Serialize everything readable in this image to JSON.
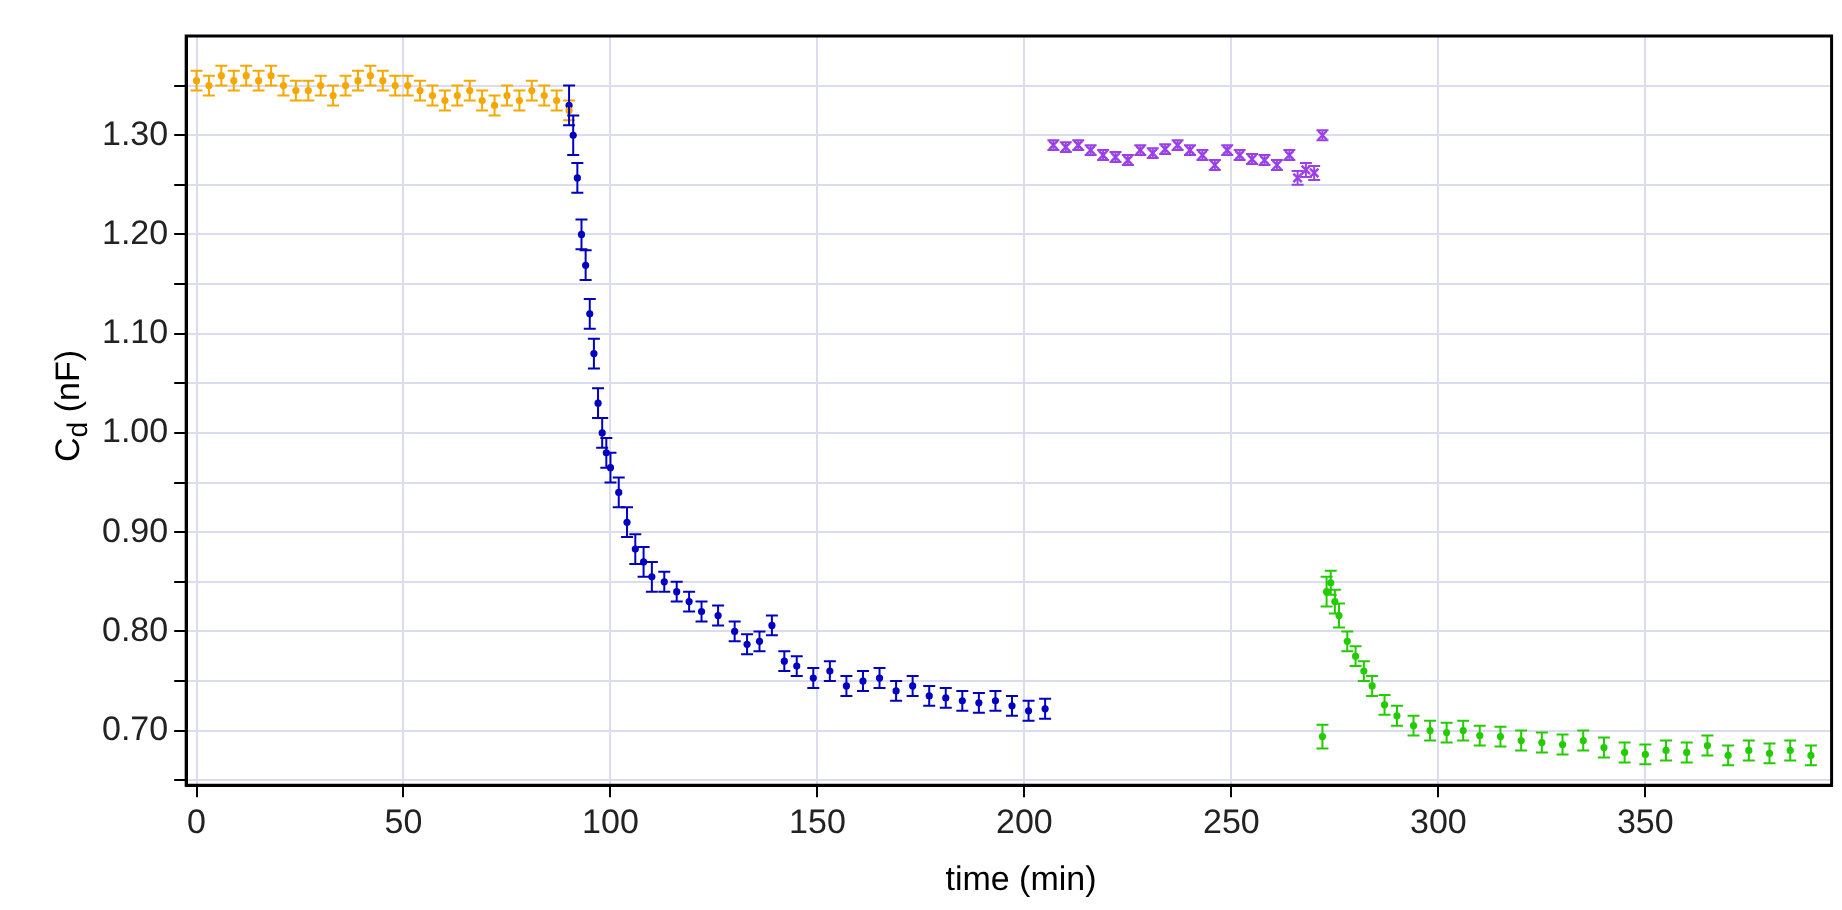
{
  "chart_data": {
    "type": "scatter",
    "xlabel": "time (min)",
    "ylabel": "C$_{d}$ (nF)",
    "xlim": [
      -2.5,
      395
    ],
    "ylim": [
      0.645,
      1.4
    ],
    "xticks": [
      0,
      50,
      100,
      150,
      200,
      250,
      300,
      350
    ],
    "yticks": [
      {
        "value": 0.65,
        "label": null
      },
      {
        "value": 0.7,
        "label": "0.70"
      },
      {
        "value": 0.75,
        "label": null
      },
      {
        "value": 0.8,
        "label": "0.80"
      },
      {
        "value": 0.85,
        "label": null
      },
      {
        "value": 0.9,
        "label": "0.90"
      },
      {
        "value": 0.95,
        "label": null
      },
      {
        "value": 1.0,
        "label": "1.00"
      },
      {
        "value": 1.05,
        "label": null
      },
      {
        "value": 1.1,
        "label": "1.10"
      },
      {
        "value": 1.15,
        "label": null
      },
      {
        "value": 1.2,
        "label": "1.20"
      },
      {
        "value": 1.25,
        "label": null
      },
      {
        "value": 1.3,
        "label": "1.30"
      },
      {
        "value": 1.35,
        "label": null
      }
    ],
    "grid": true,
    "legend": false,
    "marker": "circle",
    "series": [
      {
        "color": "#f5a800",
        "x": [
          0,
          3,
          6,
          9,
          12,
          15,
          18,
          21,
          24,
          27,
          30,
          33,
          36,
          39,
          42,
          45,
          48,
          51,
          54,
          57,
          60,
          63,
          66,
          69,
          72,
          75,
          78,
          81,
          84,
          87,
          90
        ],
        "values": [
          1.355,
          1.35,
          1.36,
          1.355,
          1.36,
          1.355,
          1.36,
          1.35,
          1.345,
          1.345,
          1.35,
          1.34,
          1.35,
          1.355,
          1.36,
          1.355,
          1.35,
          1.35,
          1.345,
          1.34,
          1.335,
          1.34,
          1.345,
          1.335,
          1.33,
          1.34,
          1.335,
          1.345,
          1.34,
          1.335,
          1.325
        ],
        "errors": [
          0.01,
          0.01,
          0.01,
          0.01,
          0.01,
          0.01,
          0.01,
          0.01,
          0.01,
          0.01,
          0.01,
          0.01,
          0.01,
          0.01,
          0.01,
          0.01,
          0.01,
          0.01,
          0.01,
          0.01,
          0.01,
          0.01,
          0.01,
          0.01,
          0.01,
          0.01,
          0.01,
          0.01,
          0.01,
          0.01,
          0.01
        ]
      },
      {
        "color": "#0000c0",
        "x": [
          90,
          91,
          92,
          93,
          94,
          95,
          96,
          97,
          98,
          99,
          100,
          102,
          104,
          106,
          108,
          110,
          113,
          116,
          119,
          122,
          126,
          130,
          133,
          136,
          139,
          142,
          145,
          149,
          153,
          157,
          161,
          165,
          169,
          173,
          177,
          181,
          185,
          189,
          193,
          197,
          201,
          205
        ],
        "values": [
          1.33,
          1.3,
          1.257,
          1.2,
          1.169,
          1.12,
          1.08,
          1.03,
          1.0,
          0.98,
          0.965,
          0.94,
          0.91,
          0.883,
          0.87,
          0.855,
          0.85,
          0.84,
          0.83,
          0.82,
          0.816,
          0.8,
          0.787,
          0.79,
          0.806,
          0.77,
          0.765,
          0.753,
          0.76,
          0.745,
          0.75,
          0.753,
          0.74,
          0.745,
          0.735,
          0.733,
          0.73,
          0.728,
          0.73,
          0.725,
          0.72,
          0.722
        ],
        "errors": [
          0.02,
          0.02,
          0.015,
          0.015,
          0.015,
          0.015,
          0.015,
          0.015,
          0.015,
          0.015,
          0.015,
          0.015,
          0.015,
          0.015,
          0.015,
          0.015,
          0.01,
          0.01,
          0.01,
          0.01,
          0.01,
          0.01,
          0.01,
          0.01,
          0.01,
          0.01,
          0.01,
          0.01,
          0.01,
          0.01,
          0.01,
          0.01,
          0.01,
          0.01,
          0.01,
          0.01,
          0.01,
          0.01,
          0.01,
          0.01,
          0.01,
          0.01
        ]
      },
      {
        "color": "#9a40e8",
        "marker": "cross",
        "x": [
          207,
          210,
          213,
          216,
          219,
          222,
          225,
          228,
          231,
          234,
          237,
          240,
          243,
          246,
          249,
          252,
          255,
          258,
          261,
          264,
          266,
          268,
          270,
          272
        ],
        "values": [
          1.29,
          1.288,
          1.29,
          1.285,
          1.28,
          1.278,
          1.275,
          1.285,
          1.282,
          1.286,
          1.29,
          1.285,
          1.28,
          1.27,
          1.285,
          1.28,
          1.276,
          1.275,
          1.27,
          1.28,
          1.257,
          1.265,
          1.262,
          1.3
        ],
        "errors": [
          0.005,
          0.005,
          0.005,
          0.005,
          0.005,
          0.005,
          0.005,
          0.005,
          0.005,
          0.005,
          0.005,
          0.005,
          0.005,
          0.005,
          0.005,
          0.005,
          0.005,
          0.005,
          0.005,
          0.005,
          0.007,
          0.007,
          0.007,
          0.005
        ]
      },
      {
        "color": "#22cc00",
        "x": [
          272,
          273,
          274,
          275,
          276,
          278,
          280,
          282,
          284,
          287,
          290,
          294,
          298,
          302,
          306,
          310,
          315,
          320,
          325,
          330,
          335,
          340,
          345,
          350,
          355,
          360,
          365,
          370,
          375,
          380,
          385,
          390
        ],
        "values": [
          0.694,
          0.84,
          0.849,
          0.83,
          0.816,
          0.79,
          0.775,
          0.76,
          0.745,
          0.726,
          0.715,
          0.705,
          0.7,
          0.698,
          0.7,
          0.695,
          0.694,
          0.69,
          0.688,
          0.686,
          0.69,
          0.683,
          0.678,
          0.676,
          0.68,
          0.678,
          0.685,
          0.675,
          0.68,
          0.677,
          0.68,
          0.675
        ],
        "errors": [
          0.012,
          0.015,
          0.012,
          0.012,
          0.012,
          0.01,
          0.01,
          0.01,
          0.01,
          0.01,
          0.01,
          0.01,
          0.01,
          0.01,
          0.01,
          0.01,
          0.01,
          0.01,
          0.01,
          0.01,
          0.01,
          0.01,
          0.01,
          0.01,
          0.01,
          0.01,
          0.01,
          0.01,
          0.01,
          0.01,
          0.01,
          0.01
        ]
      }
    ]
  }
}
